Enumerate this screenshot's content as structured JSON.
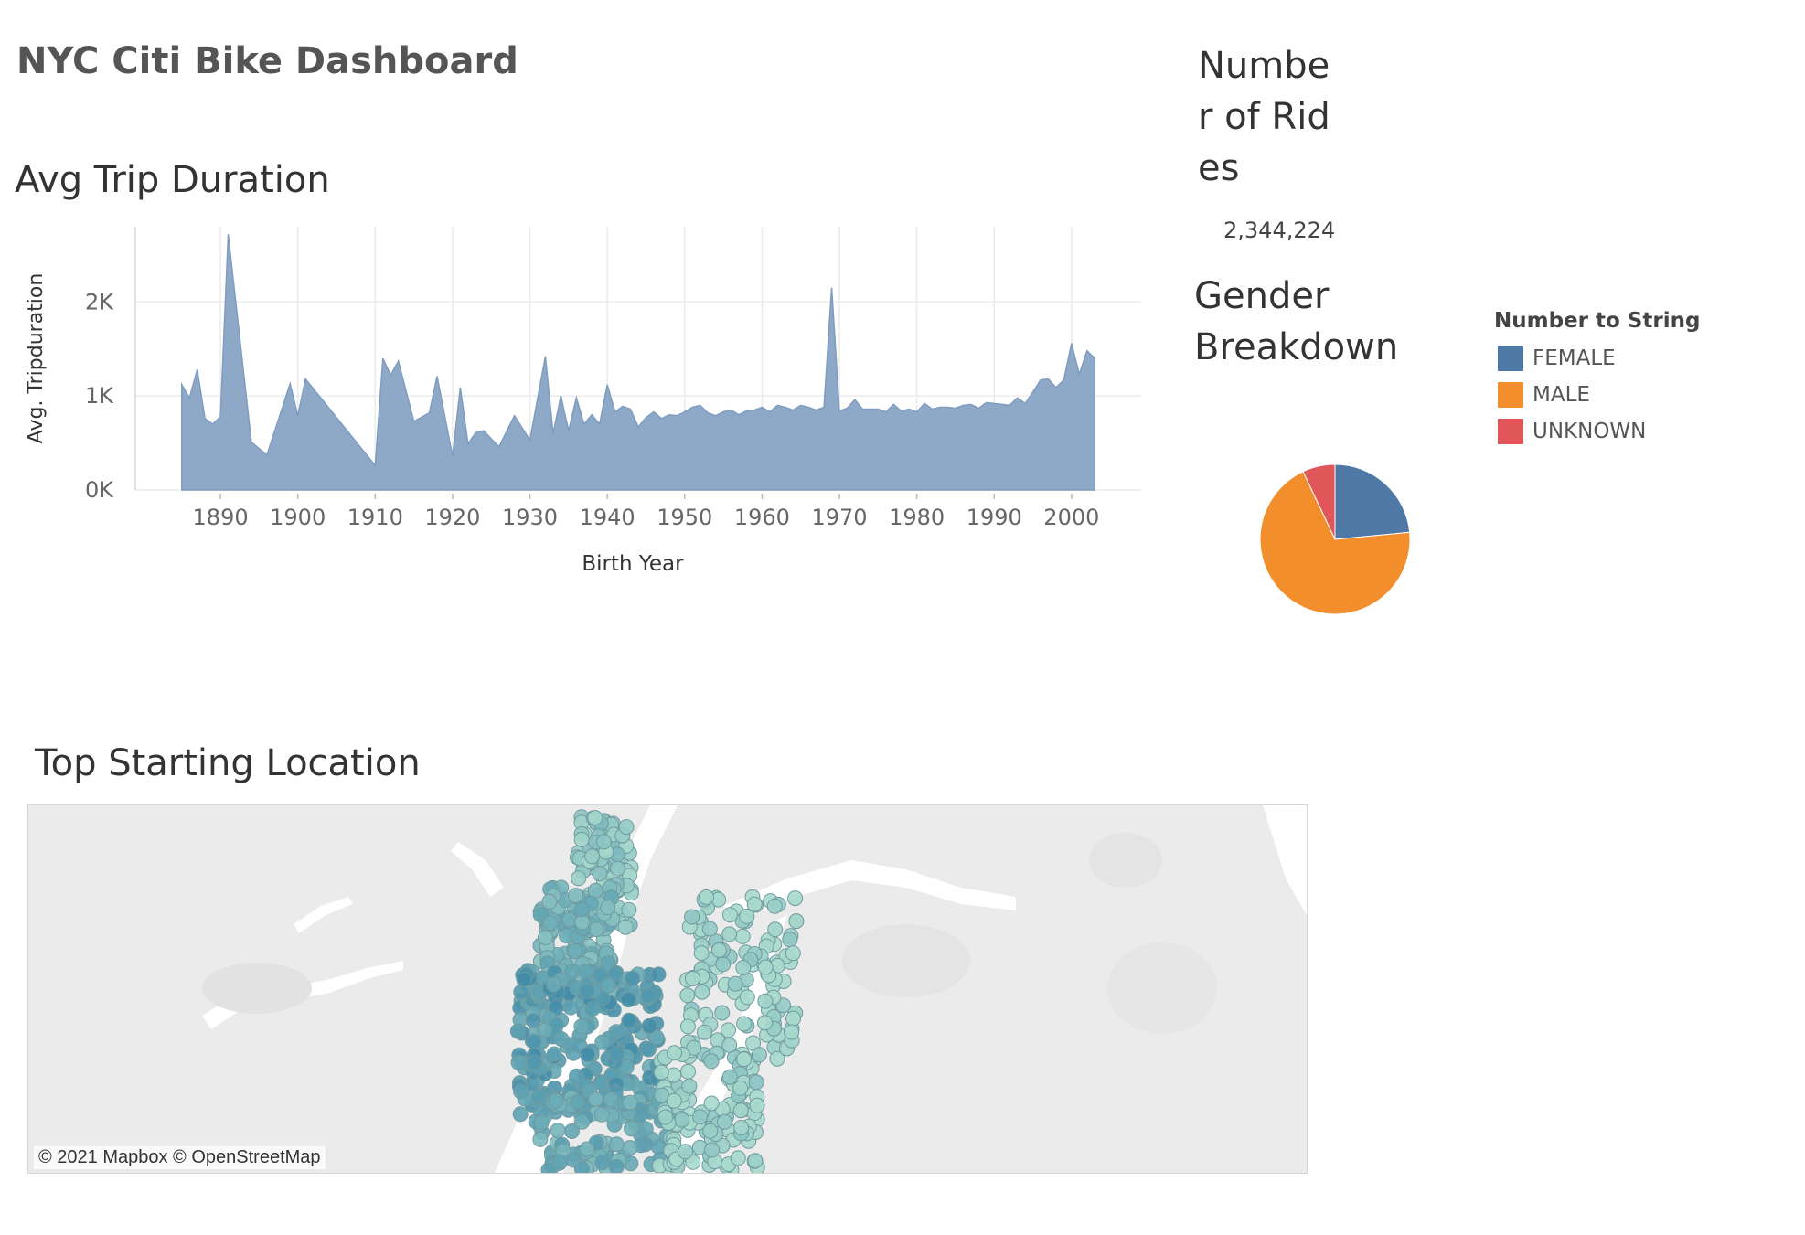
{
  "dashboard": {
    "title": "NYC Citi Bike Dashboard"
  },
  "trip_section": {
    "title": "Avg Trip Duration"
  },
  "rides": {
    "title": "Number of Rides",
    "value": "2,344,224"
  },
  "gender": {
    "title": "Gender Breakdown",
    "legend_title": "Number to String"
  },
  "map": {
    "title": "Top Starting Location",
    "attribution": "© 2021 Mapbox © OpenStreetMap",
    "colors": {
      "land": "#ebebeb",
      "water": "#ffffff",
      "dot_high": "#3a87a6",
      "dot_low": "#a7d9cc"
    }
  },
  "chart_data": [
    {
      "type": "area",
      "title": "",
      "xlabel": "Birth Year",
      "ylabel": "Avg. Tripduration",
      "xlim": [
        1879,
        2009
      ],
      "ylim": [
        0,
        2800
      ],
      "x_ticks": [
        1890,
        1900,
        1910,
        1920,
        1930,
        1940,
        1950,
        1960,
        1970,
        1980,
        1990,
        2000
      ],
      "x_tick_labels": [
        "1890",
        "1900",
        "1910",
        "1920",
        "1930",
        "1940",
        "1950",
        "1960",
        "1970",
        "1980",
        "1990",
        "2000"
      ],
      "y_ticks": [
        0,
        1000,
        2000
      ],
      "y_tick_labels": [
        "0K",
        "1K",
        "2K"
      ],
      "grid": true,
      "color": "#8ea9c8",
      "x": [
        1885,
        1886,
        1887,
        1888,
        1889,
        1890,
        1891,
        1894,
        1896,
        1899,
        1900,
        1901,
        1910,
        1911,
        1912,
        1913,
        1915,
        1917,
        1918,
        1920,
        1921,
        1922,
        1923,
        1924,
        1926,
        1928,
        1930,
        1932,
        1933,
        1934,
        1935,
        1936,
        1937,
        1938,
        1939,
        1940,
        1941,
        1942,
        1943,
        1944,
        1945,
        1946,
        1947,
        1948,
        1949,
        1950,
        1951,
        1952,
        1953,
        1954,
        1955,
        1956,
        1957,
        1958,
        1959,
        1960,
        1961,
        1962,
        1963,
        1964,
        1965,
        1966,
        1967,
        1968,
        1969,
        1970,
        1971,
        1972,
        1973,
        1974,
        1975,
        1976,
        1977,
        1978,
        1979,
        1980,
        1981,
        1982,
        1983,
        1984,
        1985,
        1986,
        1987,
        1988,
        1989,
        1990,
        1991,
        1992,
        1993,
        1994,
        1995,
        1996,
        1997,
        1998,
        1999,
        2000,
        2001,
        2002,
        2003
      ],
      "y": [
        1120,
        980,
        1280,
        760,
        700,
        780,
        2720,
        510,
        370,
        1130,
        790,
        1180,
        260,
        1400,
        1220,
        1370,
        730,
        820,
        1210,
        360,
        1090,
        490,
        610,
        630,
        460,
        790,
        530,
        1420,
        600,
        1000,
        630,
        980,
        700,
        800,
        700,
        1120,
        830,
        890,
        860,
        670,
        770,
        830,
        760,
        800,
        790,
        830,
        880,
        900,
        820,
        790,
        830,
        850,
        800,
        840,
        850,
        880,
        830,
        900,
        880,
        850,
        900,
        880,
        850,
        880,
        2150,
        840,
        870,
        960,
        860,
        860,
        860,
        830,
        910,
        840,
        860,
        830,
        920,
        860,
        880,
        880,
        870,
        900,
        910,
        870,
        930,
        920,
        910,
        900,
        980,
        920,
        1040,
        1170,
        1180,
        1090,
        1170,
        1560,
        1230,
        1480,
        1400
      ]
    },
    {
      "type": "pie",
      "title": "",
      "slices": [
        {
          "label": "FEMALE",
          "value": 23.5,
          "color": "#4e79a7"
        },
        {
          "label": "MALE",
          "value": 69.5,
          "color": "#f28e2b"
        },
        {
          "label": "UNKNOWN",
          "value": 7.0,
          "color": "#e15759"
        }
      ]
    }
  ]
}
